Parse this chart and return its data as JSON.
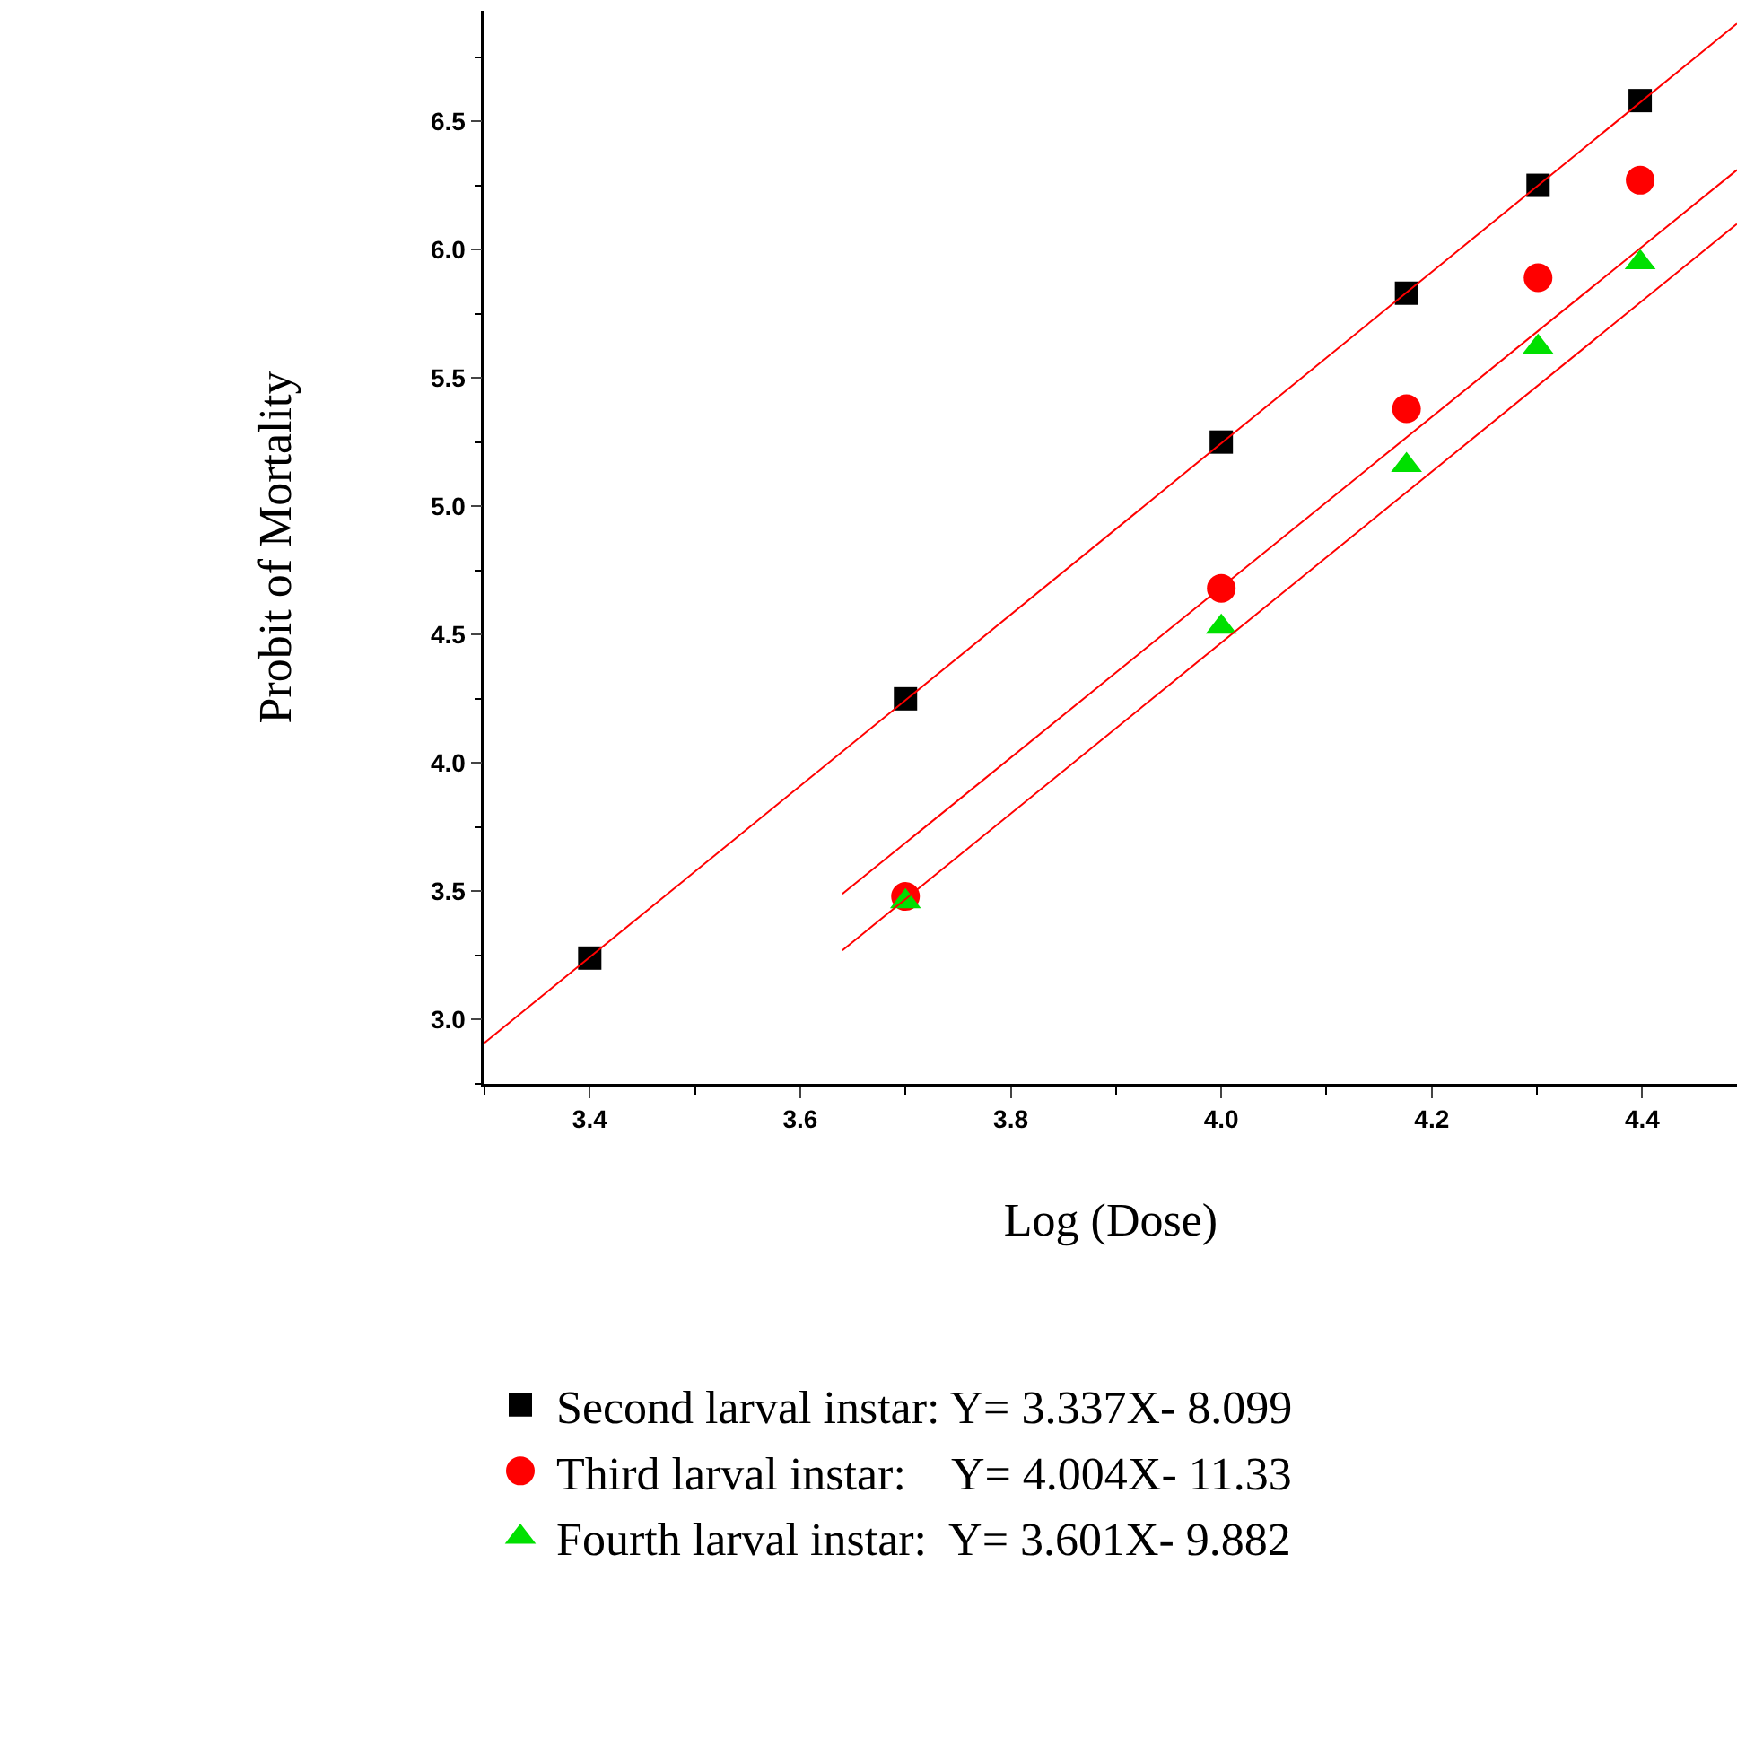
{
  "chart_data": {
    "type": "scatter",
    "xlabel": "Log (Dose)",
    "ylabel": "Probit of Mortality",
    "xlim": [
      3.3,
      4.49
    ],
    "ylim": [
      2.75,
      6.93
    ],
    "xticks": [
      {
        "value": 3.4,
        "label": "3.4"
      },
      {
        "value": 3.6,
        "label": "3.6"
      },
      {
        "value": 3.8,
        "label": "3.8"
      },
      {
        "value": 4.0,
        "label": "4.0"
      },
      {
        "value": 4.2,
        "label": "4.2"
      },
      {
        "value": 4.4,
        "label": "4.4"
      }
    ],
    "yticks": [
      {
        "value": 3.0,
        "label": "3.0"
      },
      {
        "value": 3.5,
        "label": "3.5"
      },
      {
        "value": 4.0,
        "label": "4.0"
      },
      {
        "value": 4.5,
        "label": "4.5"
      },
      {
        "value": 5.0,
        "label": "5.0"
      },
      {
        "value": 5.5,
        "label": "5.5"
      },
      {
        "value": 6.0,
        "label": "6.0"
      },
      {
        "value": 6.5,
        "label": "6.5"
      }
    ],
    "legend": "bottom",
    "series": [
      {
        "name": "Second larval instar: Y= 3.337X- 8.099",
        "color": "#000000",
        "marker": "square",
        "x": [
          3.4,
          3.7,
          4.0,
          4.176,
          4.301,
          4.398
        ],
        "values": [
          3.24,
          4.25,
          5.25,
          5.83,
          6.25,
          6.58
        ]
      },
      {
        "name": "Third larval instar:    Y= 4.004X- 11.33",
        "color": "#ff0000",
        "marker": "circle",
        "x": [
          3.7,
          4.0,
          4.176,
          4.301,
          4.398
        ],
        "values": [
          3.48,
          4.68,
          5.38,
          5.89,
          6.27
        ]
      },
      {
        "name": "Fourth larval instar:  Y= 3.601X- 9.882",
        "color": "#00e000",
        "marker": "triangle",
        "x": [
          3.7,
          4.0,
          4.176,
          4.301,
          4.398
        ],
        "values": [
          3.46,
          4.53,
          5.16,
          5.62,
          5.95
        ]
      },
      {
        "type": "line",
        "color": "#ff0000",
        "line_style": "solid",
        "marker": "none",
        "x": [
          3.3,
          4.49
        ],
        "values": [
          2.91,
          6.88
        ]
      },
      {
        "type": "line",
        "color": "#ff0000",
        "line_style": "solid",
        "marker": "none",
        "x": [
          3.64,
          4.49
        ],
        "values": [
          3.49,
          6.31
        ]
      },
      {
        "type": "line",
        "color": "#ff0000",
        "line_style": "solid",
        "marker": "none",
        "x": [
          3.64,
          4.49
        ],
        "values": [
          3.27,
          6.1
        ]
      }
    ]
  }
}
